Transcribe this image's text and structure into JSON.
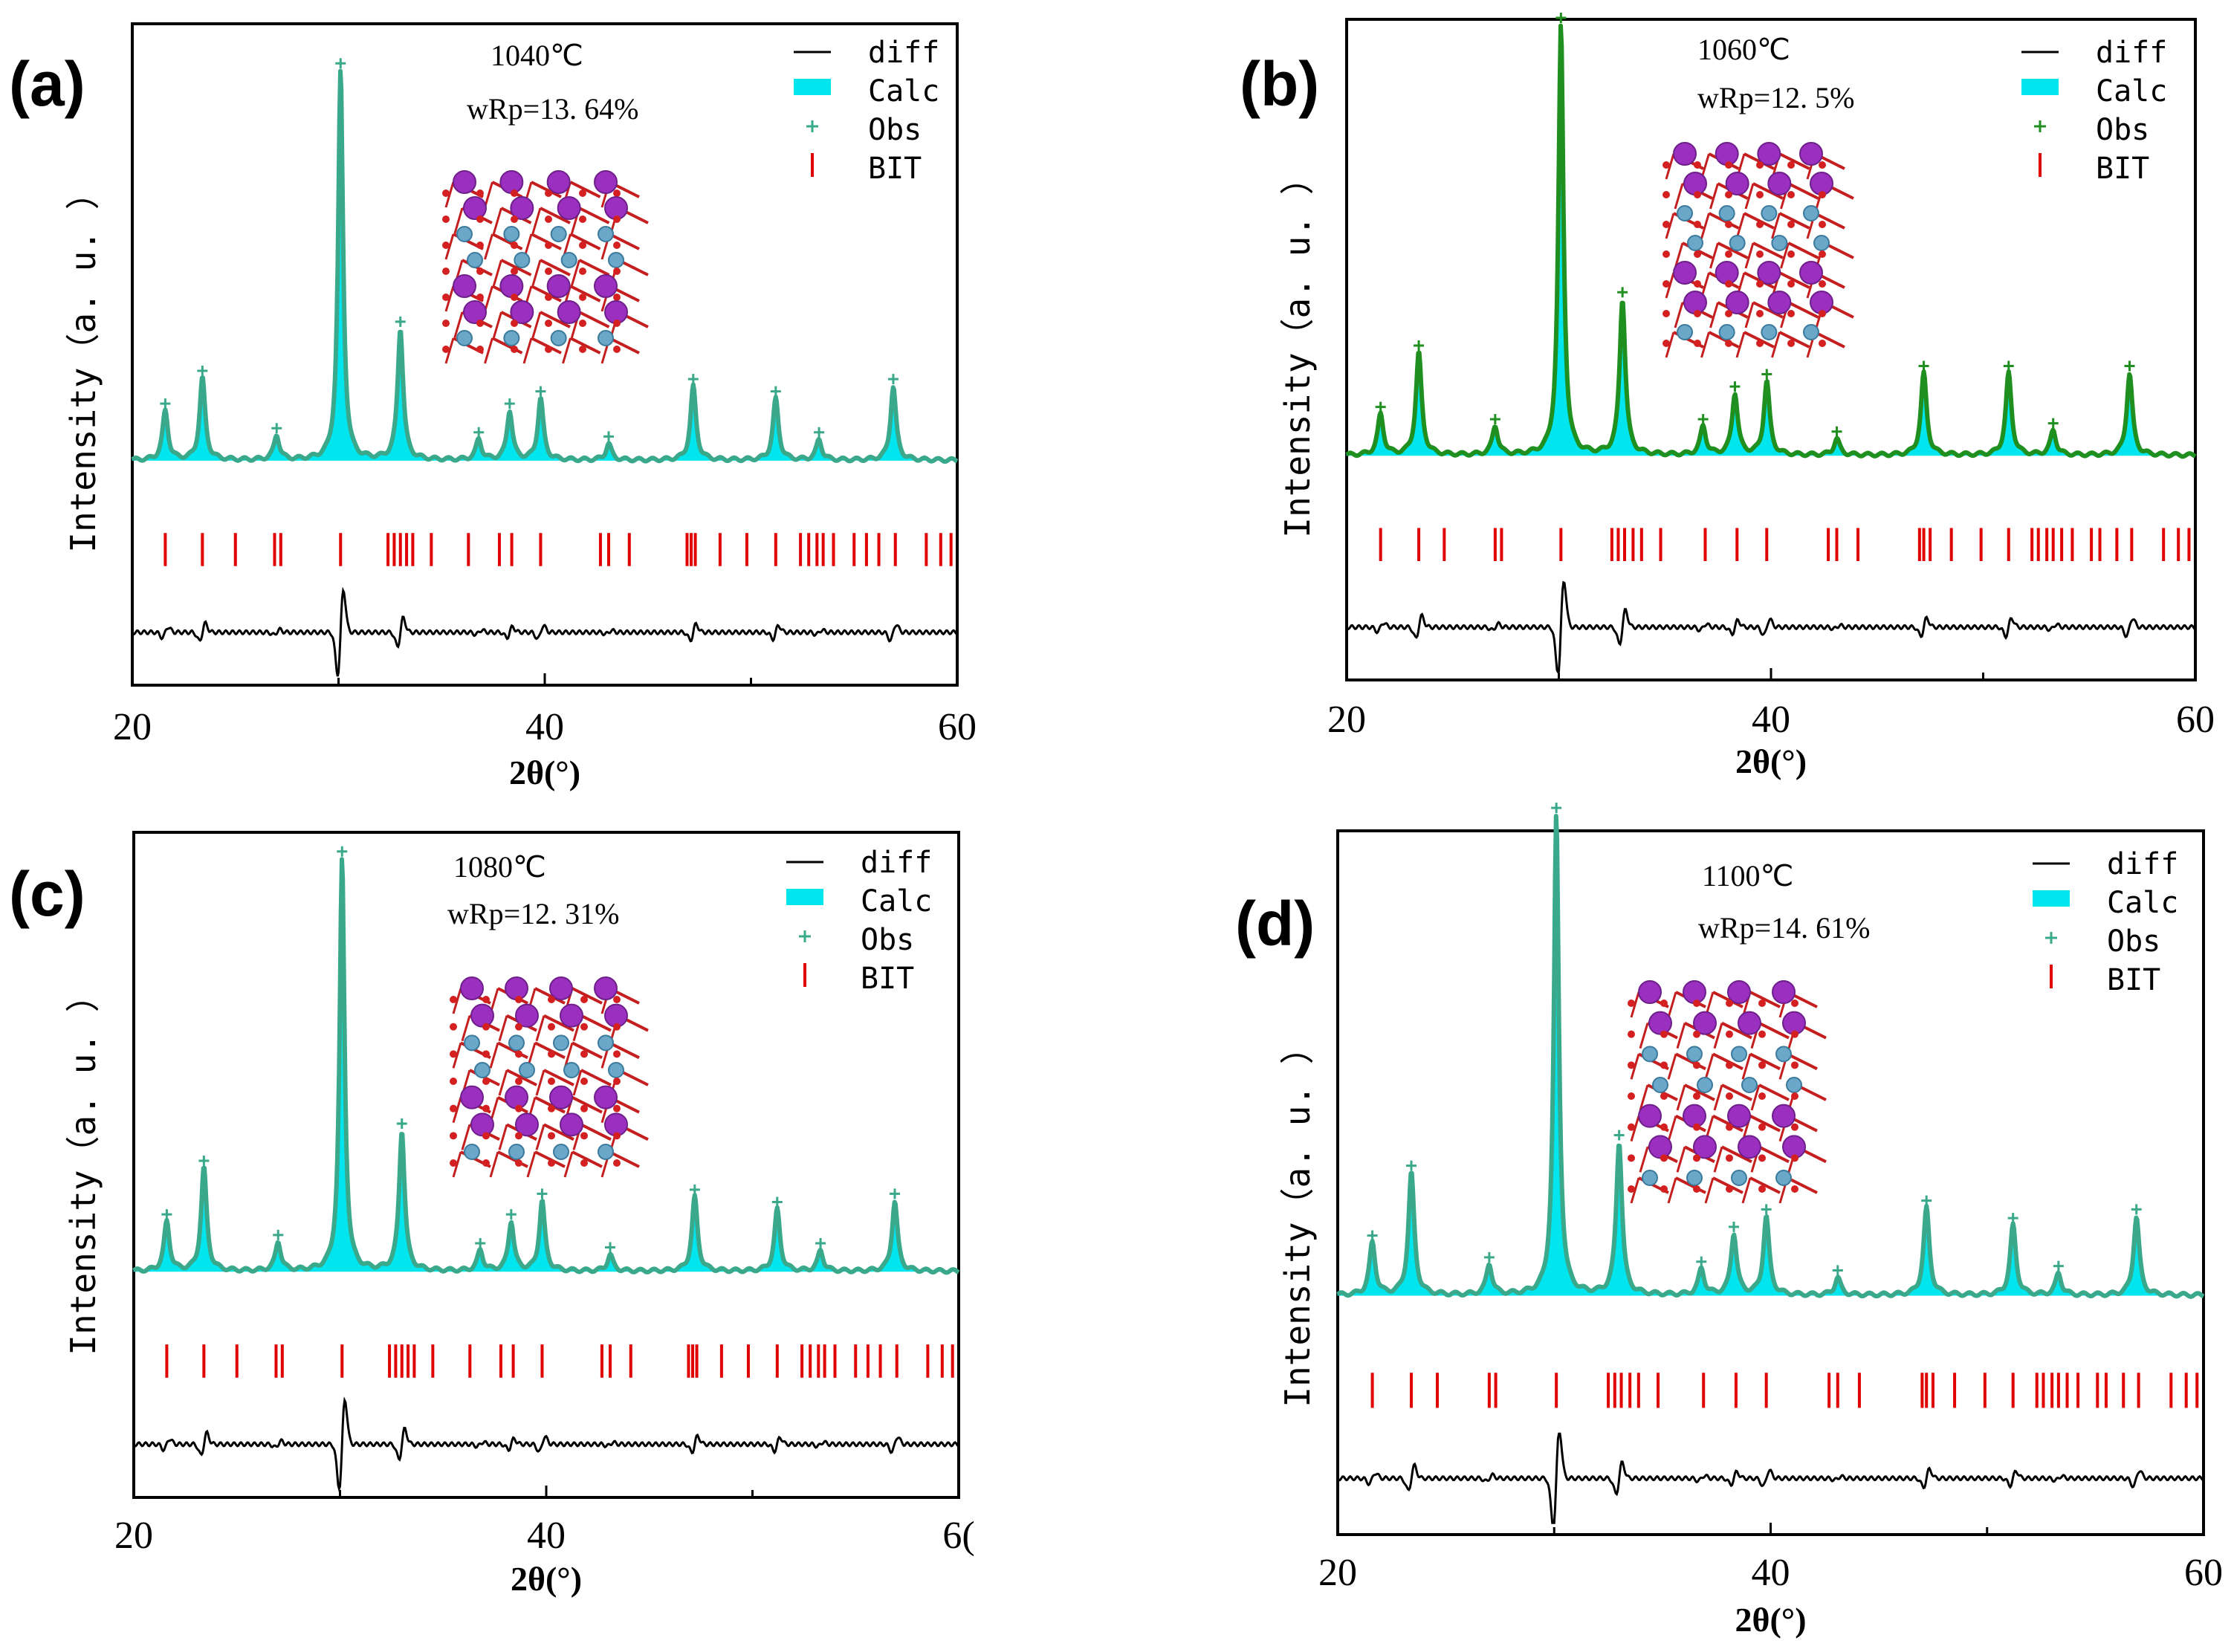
{
  "figure": {
    "x_axis_label": "2θ(°)",
    "y_axis_label": "Intensity（a. u. ）",
    "legend": [
      "diff",
      "Calc",
      "Obs",
      "BIT"
    ]
  },
  "colors": {
    "calc": "#00e5ee",
    "obs_cyan": "#3aa88a",
    "obs_green": "#1f8f1f",
    "bit_ticks": "#e00000",
    "diff": "#000000"
  },
  "chart_data": [
    {
      "type": "line",
      "panel_label": "(a)",
      "temperature": "1040℃",
      "wrp": "wRp=13. 64%",
      "xlim": [
        20,
        60
      ],
      "x_ticks": [
        "20",
        "40",
        "60"
      ],
      "obs_color": "cyan",
      "peaks": [
        [
          21.6,
          0.12
        ],
        [
          23.4,
          0.2
        ],
        [
          27.0,
          0.06
        ],
        [
          30.1,
          0.95
        ],
        [
          33.0,
          0.32
        ],
        [
          36.8,
          0.05
        ],
        [
          38.3,
          0.12
        ],
        [
          39.8,
          0.15
        ],
        [
          43.1,
          0.04
        ],
        [
          47.2,
          0.18
        ],
        [
          51.2,
          0.15
        ],
        [
          53.3,
          0.05
        ],
        [
          56.9,
          0.18
        ]
      ],
      "bit_reflections": [
        21.6,
        23.4,
        25.0,
        26.9,
        27.2,
        30.1,
        32.4,
        32.7,
        33.0,
        33.3,
        33.6,
        34.5,
        36.3,
        37.8,
        38.4,
        39.8,
        42.7,
        43.1,
        44.1,
        46.9,
        47.1,
        47.3,
        48.5,
        49.8,
        51.2,
        52.4,
        52.8,
        53.2,
        53.5,
        54.0,
        55.0,
        55.6,
        56.2,
        57.0,
        58.5,
        59.2,
        59.7
      ]
    },
    {
      "type": "line",
      "panel_label": "(b)",
      "temperature": "1060℃",
      "wrp": "wRp=12. 5%",
      "xlim": [
        20,
        60
      ],
      "x_ticks": [
        "20",
        "40",
        "60"
      ],
      "obs_color": "green",
      "peaks": [
        [
          21.6,
          0.1
        ],
        [
          23.4,
          0.25
        ],
        [
          27.0,
          0.07
        ],
        [
          30.1,
          1.05
        ],
        [
          33.0,
          0.38
        ],
        [
          36.8,
          0.07
        ],
        [
          38.3,
          0.15
        ],
        [
          39.8,
          0.18
        ],
        [
          43.1,
          0.04
        ],
        [
          47.2,
          0.2
        ],
        [
          51.2,
          0.2
        ],
        [
          53.3,
          0.06
        ],
        [
          56.9,
          0.2
        ]
      ],
      "bit_reflections": [
        21.6,
        23.4,
        24.6,
        27.0,
        27.3,
        30.1,
        32.5,
        32.8,
        33.1,
        33.5,
        33.9,
        34.8,
        36.9,
        38.4,
        39.8,
        42.7,
        43.1,
        44.1,
        47.0,
        47.2,
        47.5,
        48.5,
        49.9,
        51.2,
        52.3,
        52.6,
        53.0,
        53.3,
        53.7,
        54.2,
        55.1,
        55.5,
        56.3,
        57.0,
        58.5,
        59.2,
        59.7
      ]
    },
    {
      "type": "line",
      "panel_label": "(c)",
      "temperature": "1080℃",
      "wrp": "wRp=12. 31%",
      "xlim": [
        20,
        60
      ],
      "x_ticks": [
        "20",
        "40",
        "6("
      ],
      "obs_color": "cyan",
      "peaks": [
        [
          21.6,
          0.12
        ],
        [
          23.4,
          0.25
        ],
        [
          27.0,
          0.07
        ],
        [
          30.1,
          1.0
        ],
        [
          33.0,
          0.34
        ],
        [
          36.8,
          0.05
        ],
        [
          38.3,
          0.12
        ],
        [
          39.8,
          0.17
        ],
        [
          43.1,
          0.04
        ],
        [
          47.2,
          0.18
        ],
        [
          51.2,
          0.15
        ],
        [
          53.3,
          0.05
        ],
        [
          56.9,
          0.17
        ]
      ],
      "bit_reflections": [
        21.6,
        23.4,
        25.0,
        26.9,
        27.2,
        30.1,
        32.4,
        32.7,
        33.0,
        33.3,
        33.6,
        34.5,
        36.3,
        37.8,
        38.4,
        39.8,
        42.7,
        43.1,
        44.1,
        46.9,
        47.1,
        47.3,
        48.5,
        49.8,
        51.2,
        52.4,
        52.8,
        53.2,
        53.5,
        54.0,
        55.0,
        55.6,
        56.2,
        57.0,
        58.5,
        59.2,
        59.7
      ]
    },
    {
      "type": "line",
      "panel_label": "(d)",
      "temperature": "1100℃",
      "wrp": "wRp=14. 61%",
      "xlim": [
        20,
        60
      ],
      "x_ticks": [
        "20",
        "40",
        "60"
      ],
      "obs_color": "cyan",
      "peaks": [
        [
          21.6,
          0.12
        ],
        [
          23.4,
          0.28
        ],
        [
          27.0,
          0.07
        ],
        [
          30.1,
          1.1
        ],
        [
          33.0,
          0.35
        ],
        [
          36.8,
          0.06
        ],
        [
          38.3,
          0.14
        ],
        [
          39.8,
          0.18
        ],
        [
          43.1,
          0.04
        ],
        [
          47.2,
          0.2
        ],
        [
          51.2,
          0.16
        ],
        [
          53.3,
          0.05
        ],
        [
          56.9,
          0.18
        ]
      ],
      "bit_reflections": [
        21.6,
        23.4,
        24.6,
        27.0,
        27.3,
        30.1,
        32.5,
        32.8,
        33.1,
        33.5,
        33.9,
        34.8,
        36.9,
        38.4,
        39.8,
        42.7,
        43.1,
        44.1,
        47.0,
        47.2,
        47.5,
        48.5,
        49.9,
        51.2,
        52.3,
        52.6,
        53.0,
        53.3,
        53.7,
        54.2,
        55.1,
        55.5,
        56.3,
        57.0,
        58.5,
        59.2,
        59.7
      ]
    }
  ]
}
